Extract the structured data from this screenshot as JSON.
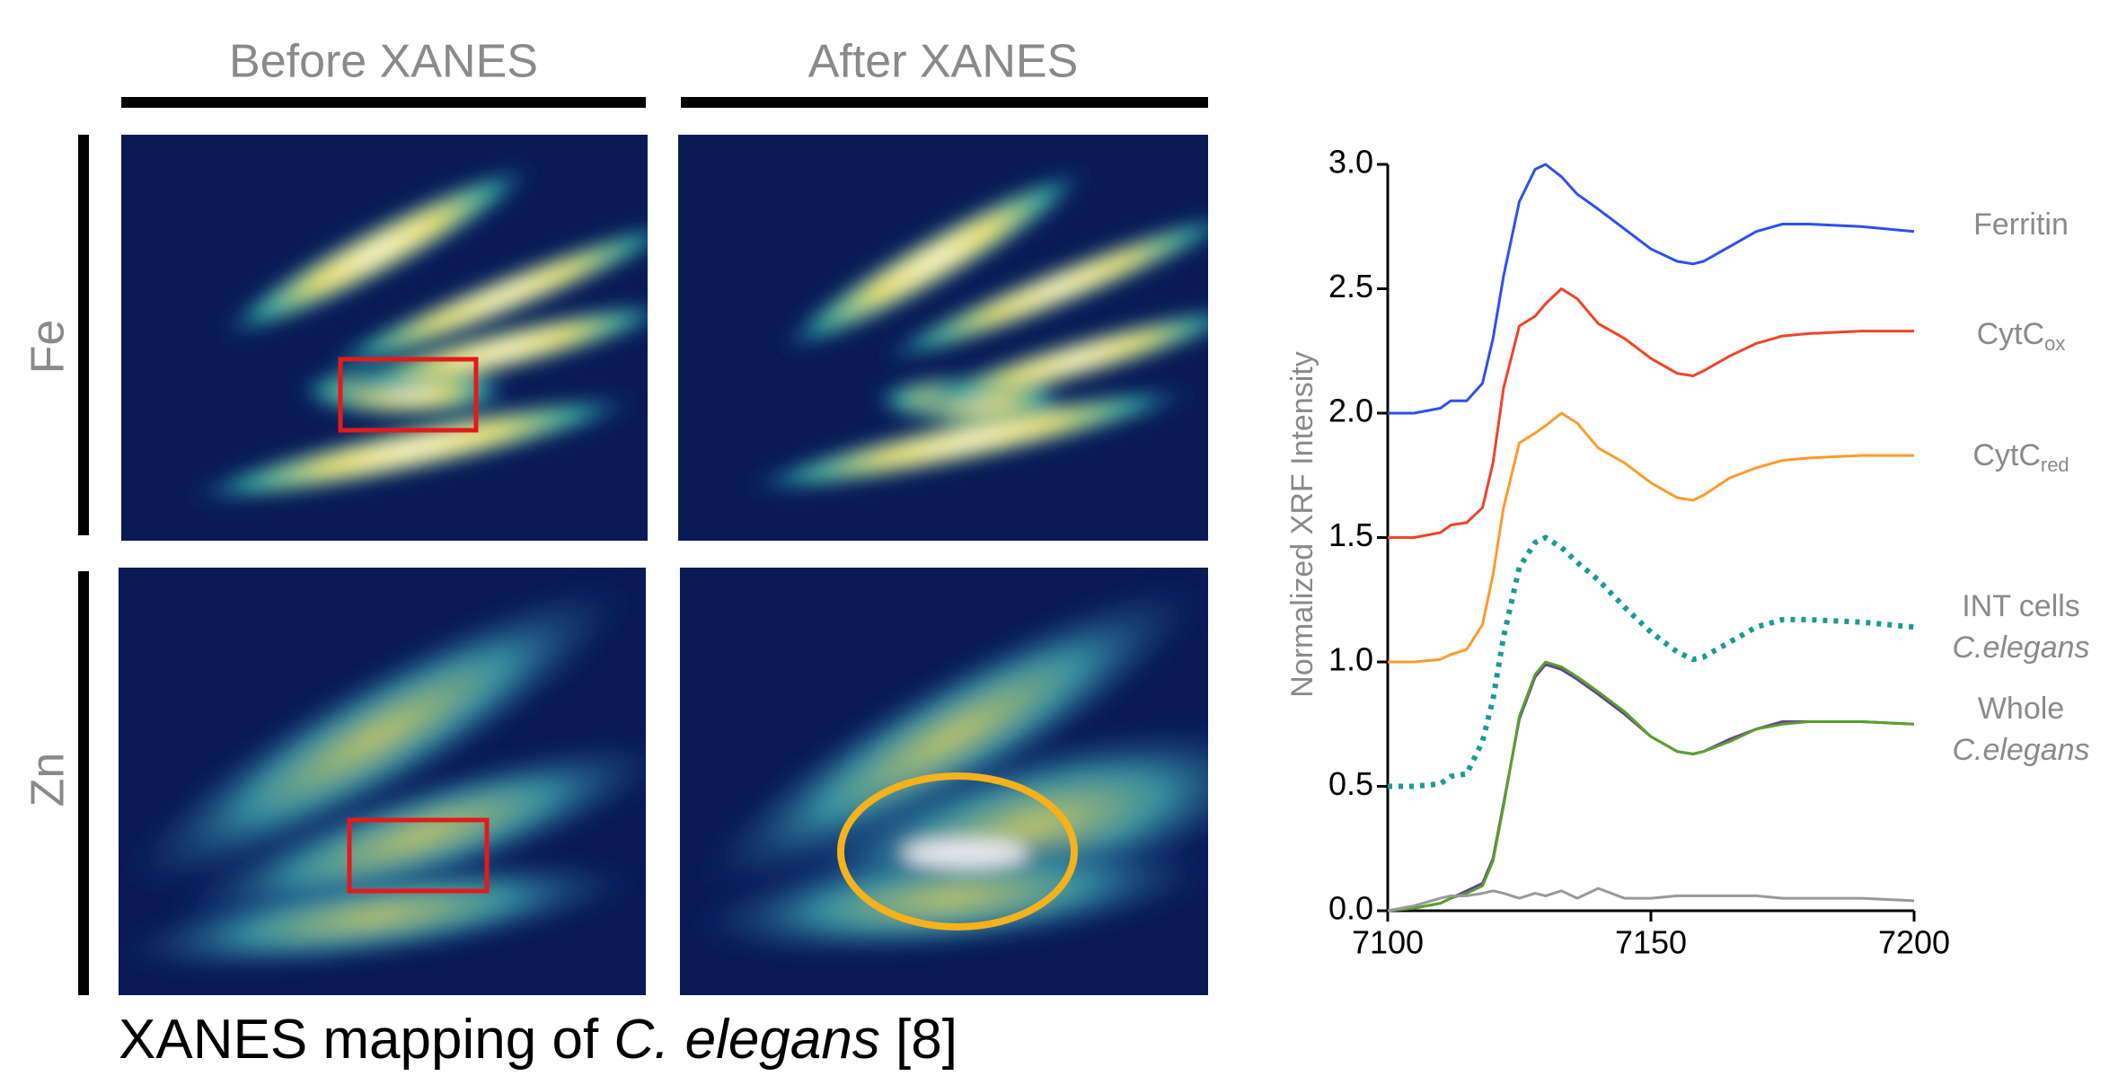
{
  "figure": {
    "columns": [
      "Before XANES",
      "After XANES"
    ],
    "rows": [
      "Fe",
      "Zn"
    ],
    "caption": [
      "XANES mapping of ",
      "C. elegans",
      " [8]"
    ]
  },
  "chart_data": {
    "type": "line",
    "y_label": "Normalized XRF Intensity",
    "xlim": [
      7100,
      7200
    ],
    "xticks": [
      7100,
      7150,
      7200
    ],
    "ylim": [
      0,
      3.0
    ],
    "yticks": [
      {
        "value": 0,
        "label": "0.0"
      },
      0.5,
      {
        "value": 1,
        "label": "1.0"
      },
      1.5,
      {
        "value": 2,
        "label": "2.0"
      },
      2.5,
      {
        "value": 3,
        "label": "3.0"
      }
    ],
    "x": [
      7100,
      7105,
      7110,
      7112,
      7115,
      7118,
      7120,
      7122,
      7125,
      7128,
      7130,
      7133,
      7136,
      7140,
      7145,
      7150,
      7155,
      7158,
      7160,
      7165,
      7170,
      7175,
      7180,
      7190,
      7200
    ],
    "series": [
      {
        "name": "Ferritin",
        "color": "#2f4ff0",
        "values": [
          2.0,
          2.0,
          2.02,
          2.05,
          2.05,
          2.12,
          2.3,
          2.55,
          2.85,
          2.98,
          3.0,
          2.95,
          2.88,
          2.82,
          2.74,
          2.66,
          2.61,
          2.6,
          2.61,
          2.67,
          2.73,
          2.76,
          2.76,
          2.75,
          2.73
        ]
      },
      {
        "name": "CytC",
        "subscript": "ox",
        "color": "#f0432a",
        "values": [
          1.5,
          1.5,
          1.52,
          1.55,
          1.56,
          1.62,
          1.8,
          2.1,
          2.35,
          2.39,
          2.44,
          2.5,
          2.46,
          2.36,
          2.3,
          2.22,
          2.16,
          2.15,
          2.17,
          2.23,
          2.28,
          2.31,
          2.32,
          2.33,
          2.33
        ]
      },
      {
        "name": "CytC",
        "subscript": "red",
        "color": "#ff9a2e",
        "values": [
          1.0,
          1.0,
          1.01,
          1.03,
          1.05,
          1.15,
          1.35,
          1.62,
          1.88,
          1.92,
          1.95,
          2.0,
          1.96,
          1.86,
          1.8,
          1.72,
          1.66,
          1.65,
          1.67,
          1.74,
          1.78,
          1.81,
          1.82,
          1.83,
          1.83
        ]
      },
      {
        "name": [
          "INT cells",
          "C.elegans"
        ],
        "color": "#1a9a96",
        "dotted": true,
        "values": [
          0.5,
          0.5,
          0.51,
          0.54,
          0.55,
          0.68,
          0.85,
          1.1,
          1.38,
          1.48,
          1.5,
          1.46,
          1.4,
          1.33,
          1.22,
          1.12,
          1.04,
          1.01,
          1.02,
          1.08,
          1.14,
          1.17,
          1.17,
          1.16,
          1.14
        ]
      },
      {
        "color": "#6a3d9a",
        "values": [
          0.0,
          0.01,
          0.03,
          0.05,
          0.08,
          0.11,
          0.21,
          0.43,
          0.77,
          0.94,
          0.99,
          0.97,
          0.93,
          0.87,
          0.79,
          0.7,
          0.64,
          0.63,
          0.64,
          0.69,
          0.73,
          0.76,
          0.76,
          0.76,
          0.75
        ]
      },
      {
        "name": [
          "Whole",
          "C.elegans"
        ],
        "color": "#5aa02c",
        "values": [
          0.0,
          0.01,
          0.03,
          0.05,
          0.07,
          0.1,
          0.2,
          0.42,
          0.78,
          0.95,
          1.0,
          0.98,
          0.94,
          0.88,
          0.8,
          0.7,
          0.64,
          0.63,
          0.64,
          0.68,
          0.73,
          0.75,
          0.76,
          0.76,
          0.75
        ]
      },
      {
        "color": "#999999",
        "values": [
          0.0,
          0.02,
          0.05,
          0.06,
          0.06,
          0.07,
          0.08,
          0.07,
          0.05,
          0.07,
          0.06,
          0.08,
          0.05,
          0.09,
          0.05,
          0.05,
          0.06,
          0.06,
          0.06,
          0.06,
          0.06,
          0.05,
          0.05,
          0.05,
          0.04
        ]
      }
    ]
  }
}
